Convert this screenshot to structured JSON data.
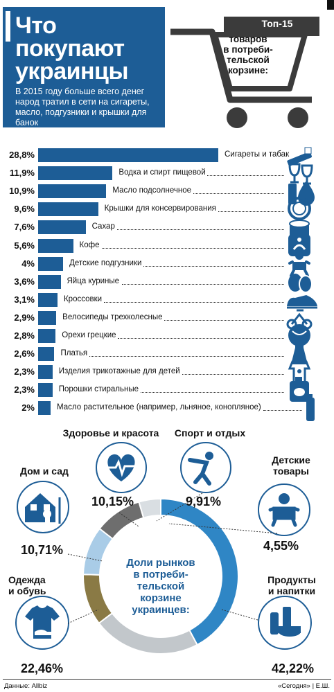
{
  "title_lines": [
    "Что",
    "покупают",
    "украинцы"
  ],
  "subtitle": "В 2015 году больше всего денег народ тратил в сети на сигареты, масло, подгузники и крышки для банок",
  "top15": {
    "title": "Топ-15",
    "subtitle_lines": [
      "товаров",
      "в потреби-",
      "тельской",
      "корзине:"
    ]
  },
  "colors": {
    "accent": "#1d5d96",
    "dark": "#3b3b3b",
    "bar": "#1d5d96"
  },
  "chart_data": [
    {
      "type": "bar",
      "orientation": "horizontal",
      "categories": [
        "Сигареты и табак",
        "Водка и спирт пищевой",
        "Масло подсолнечное",
        "Крышки для консервирования",
        "Сахар",
        "Кофе",
        "Детские подгузники",
        "Яйца куриные",
        "Кроссовки",
        "Велосипеды трехколесные",
        "Орехи грецкие",
        "Платья",
        "Изделия трикотажные для детей",
        "Порошки стиральные",
        "Масло растительное (например, льняное, конопляное)"
      ],
      "values": [
        28.8,
        11.9,
        10.9,
        9.6,
        7.6,
        5.6,
        4,
        3.6,
        3.1,
        2.9,
        2.8,
        2.6,
        2.3,
        2.3,
        2
      ],
      "value_labels": [
        "28,8%",
        "11,9%",
        "10,9%",
        "9,6%",
        "7,6%",
        "5,6%",
        "4%",
        "3,6%",
        "3,1%",
        "2,9%",
        "2,8%",
        "2,6%",
        "2,3%",
        "2,3%",
        "2%"
      ],
      "icons": [
        "cigarette-icon",
        "wine-glasses-icon",
        "oil-bottle-icon",
        "jar-lid-icon",
        "sugar-sack-icon",
        "coffee-icon",
        "baby-icon",
        "eggs-icon",
        "sneaker-icon",
        "tricycle-icon",
        "walnut-icon",
        "dress-icon",
        "baby-clothes-icon",
        "detergent-icon",
        "small-oil-bottle-icon"
      ]
    },
    {
      "type": "pie",
      "style": "donut",
      "center_label_lines": [
        "Доли рынков",
        "в потреби-",
        "тельской",
        "корзине",
        "украинцев:"
      ],
      "categories": [
        "Продукты и напитки",
        "Одежда и обувь",
        "Дом и сад",
        "Здоровье и красота",
        "Спорт и отдых",
        "Детские товары"
      ],
      "label_lines": [
        [
          "Продукты",
          "и напитки"
        ],
        [
          "Одежда",
          "и обувь"
        ],
        [
          "Дом и сад"
        ],
        [
          "Здоровье и красота"
        ],
        [
          "Спорт и отдых"
        ],
        [
          "Детские",
          "товары"
        ]
      ],
      "values": [
        42.22,
        22.46,
        10.71,
        10.15,
        9.91,
        4.55
      ],
      "value_labels": [
        "42,22%",
        "22,46%",
        "10,71%",
        "10,15%",
        "9,91%",
        "4,55%"
      ],
      "colors": [
        "#2f86c5",
        "#c2c7cb",
        "#8a7a45",
        "#a9cce7",
        "#6e6e6e",
        "#d9dee2"
      ],
      "icons": [
        "grocery-icon",
        "tshirt-icon",
        "house-icon",
        "heart-pulse-icon",
        "exercise-icon",
        "baby-icon"
      ]
    }
  ],
  "footer": {
    "source": "Данные: Allbiz",
    "credit": "«Сегодня» | Е.Ш."
  }
}
